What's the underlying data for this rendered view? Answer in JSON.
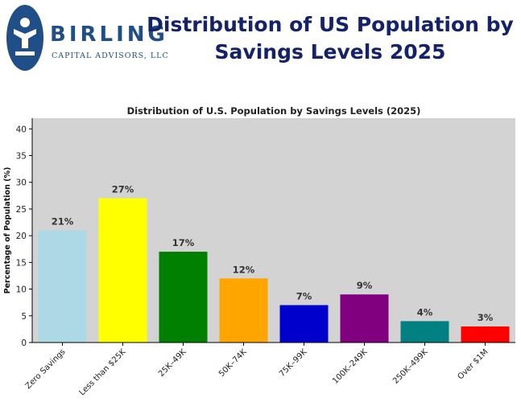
{
  "logo": {
    "name": "BIRLING",
    "subtitle": "CAPITAL ADVISORS, LLC"
  },
  "page_title_line1": "Distribution of US Population by",
  "page_title_line2": "Savings Levels 2025",
  "colors": {
    "title": "#14226b",
    "logo": "#1f4f86",
    "plot_bg": "#d3d3d3"
  },
  "chart_data": {
    "type": "bar",
    "title": "Distribution of U.S. Population by Savings Levels (2025)",
    "xlabel": "",
    "ylabel": "Percentage of Population (%)",
    "ylim": [
      0,
      42
    ],
    "yticks": [
      0,
      5,
      10,
      15,
      20,
      25,
      30,
      35,
      40
    ],
    "categories": [
      "Zero Savings",
      "Less than $25K",
      "25K–49K",
      "50K–74K",
      "75K–99K",
      "100K–249K",
      "250K–499K",
      "Over $1M"
    ],
    "values": [
      21,
      27,
      17,
      12,
      7,
      9,
      4,
      3
    ],
    "data_labels": [
      "21%",
      "27%",
      "17%",
      "12%",
      "7%",
      "9%",
      "4%",
      "3%"
    ],
    "bar_colors": [
      "#add8e6",
      "#ffff00",
      "#008000",
      "#ffa500",
      "#0000cd",
      "#800080",
      "#008080",
      "#ff0000"
    ],
    "grid": false,
    "legend": "none"
  }
}
